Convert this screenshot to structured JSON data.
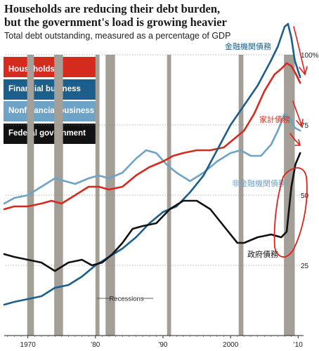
{
  "chart_data": {
    "type": "line",
    "title": "Households are reducing their debt burden, but the government's load is growing heavier",
    "subtitle": "Total debt outstanding, measured as a percentage of GDP",
    "x_ticks": [
      "1970",
      "'80",
      "'90",
      "2000",
      "'10"
    ],
    "y_ticks": [
      "25",
      "50",
      "75",
      "100%"
    ],
    "ylim": [
      0,
      112
    ],
    "xlim": [
      1966.5,
      2010.8
    ],
    "recessions": [
      [
        1969.9,
        1970.9
      ],
      [
        1973.9,
        1975.2
      ],
      [
        1980.0,
        1980.6
      ],
      [
        1981.5,
        1982.9
      ],
      [
        1990.6,
        1991.2
      ],
      [
        2001.2,
        2001.9
      ],
      [
        2007.9,
        2009.5
      ]
    ],
    "recessions_label": "Recessions",
    "series": [
      {
        "name": "Households",
        "color": "#d52b1e",
        "x": [
          1966.5,
          1968,
          1970,
          1972,
          1973.5,
          1975,
          1977,
          1979,
          1980.5,
          1982,
          1984,
          1986,
          1988,
          1990,
          1991.5,
          1993,
          1995,
          1997,
          1999,
          2000.5,
          2002,
          2003.5,
          2005,
          2006.5,
          2007.5,
          2008.3,
          2009,
          2009.7,
          2010.3
        ],
        "y": [
          45,
          46,
          46,
          47,
          48,
          47,
          50,
          53,
          53,
          52,
          53,
          57,
          60,
          62,
          64,
          65,
          66,
          66,
          67,
          70,
          73,
          79,
          87,
          93,
          95,
          97,
          96,
          93,
          90
        ]
      },
      {
        "name": "Financial business",
        "color": "#1c5f8b",
        "x": [
          1966.5,
          1968,
          1970,
          1972,
          1974,
          1976,
          1978,
          1980,
          1982,
          1984,
          1986,
          1988,
          1990,
          1992,
          1994,
          1996,
          1998,
          2000,
          2002,
          2004,
          2006,
          2007,
          2008,
          2008.5,
          2009,
          2009.5,
          2010.3
        ],
        "y": [
          11,
          12,
          13,
          14,
          17,
          18,
          21,
          25,
          28,
          31,
          35,
          40,
          44,
          46,
          51,
          57,
          66,
          75,
          82,
          89,
          98,
          103,
          110,
          111,
          106,
          98,
          92
        ]
      },
      {
        "name": "Nonfinancial business",
        "color": "#6ea3c6",
        "x": [
          1966.5,
          1968,
          1970,
          1972,
          1974,
          1975.5,
          1977,
          1979,
          1980.5,
          1982,
          1984,
          1986,
          1987.5,
          1989,
          1990.5,
          1992,
          1994,
          1996,
          1998,
          2000,
          2001.5,
          2003,
          2004.5,
          2006,
          2007,
          2008,
          2008.7,
          2009.5,
          2010.3
        ],
        "y": [
          47,
          49,
          50,
          53,
          56,
          55,
          54,
          56,
          57,
          56,
          58,
          63,
          66,
          65,
          61,
          58,
          55,
          58,
          62,
          65,
          66,
          64,
          64,
          68,
          73,
          79,
          78,
          74,
          73
        ]
      },
      {
        "name": "Federal government",
        "color": "#111111",
        "x": [
          1966.5,
          1968,
          1970,
          1972,
          1974,
          1976,
          1978,
          1979.5,
          1981,
          1982.5,
          1984,
          1985.5,
          1987,
          1989,
          1991,
          1993,
          1995,
          1997,
          1999,
          2001,
          2002,
          2004,
          2006,
          2007.5,
          2008.3,
          2009,
          2009.6,
          2010.3
        ],
        "y": [
          29,
          28,
          27,
          26,
          23,
          26,
          27,
          25,
          26,
          29,
          33,
          38,
          39,
          40,
          45,
          48,
          48,
          45,
          39,
          33,
          33,
          35,
          36,
          35,
          37,
          53,
          61,
          65
        ]
      }
    ],
    "annotations": [
      {
        "text": "金融機関債務",
        "series": "Financial business",
        "color": "#1c5f8b"
      },
      {
        "text": "家計債務",
        "series": "Households",
        "color": "#d52b1e"
      },
      {
        "text": "非金融機関債務",
        "series": "Nonfinancial business",
        "color": "#6ea3c6"
      },
      {
        "text": "政府債務",
        "series": "Federal government",
        "color": "#111111"
      }
    ]
  }
}
